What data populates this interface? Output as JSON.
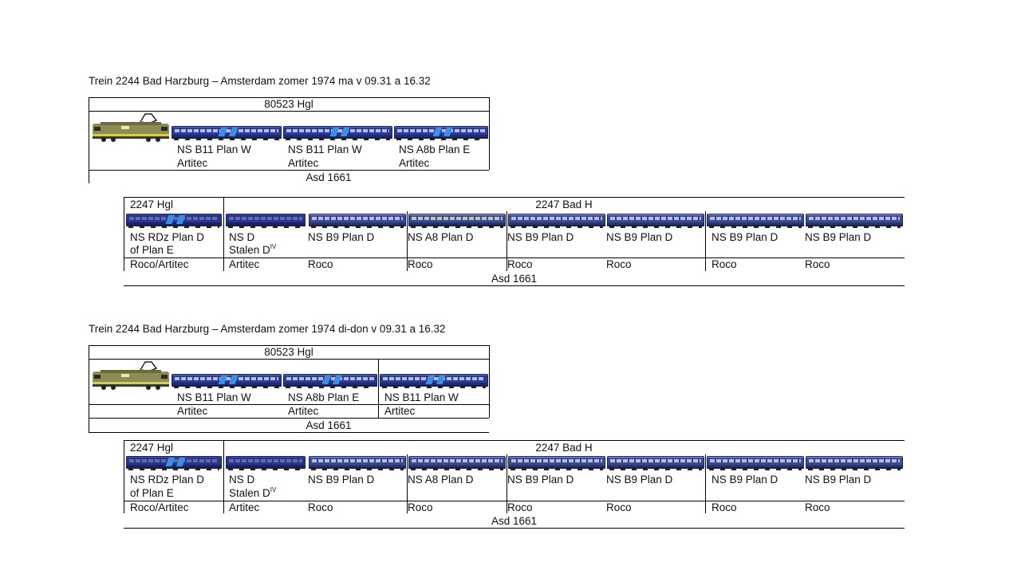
{
  "block1": {
    "title": "Trein 2244 Bad Harzburg – Amsterdam zomer 1974 ma v 09.31  a 16.32",
    "header": "80523 Hgl",
    "loco_icon": "electric-locomotive-1200",
    "coaches": [
      {
        "type": "NS B11 Plan W",
        "maker": "Artitec"
      },
      {
        "type": "NS B11 Plan W",
        "maker": "Artitec"
      },
      {
        "type": "NS A8b Plan E",
        "maker": "Artitec"
      }
    ],
    "footer": "Asd 1661"
  },
  "block2": {
    "header_left": "2247 Hgl",
    "header_right": "2247 Bad H",
    "coaches": [
      {
        "type": "NS RDz Plan D",
        "type2": "of Plan E",
        "maker": "Roco/Artitec"
      },
      {
        "type": "NS D",
        "type2": "Stalen D",
        "sup": "IV",
        "maker": "Artitec"
      },
      {
        "type": "NS B9 Plan D",
        "maker": "Roco"
      },
      {
        "type": "NS A8 Plan D",
        "maker": "Roco"
      },
      {
        "type": "NS B9 Plan D",
        "maker": "Roco"
      },
      {
        "type": "NS B9 Plan D",
        "maker": "Roco"
      },
      {
        "type": "NS B9 Plan D",
        "maker": "Roco"
      },
      {
        "type": "NS B9 Plan D",
        "maker": "Roco"
      }
    ],
    "footer": "Asd 1661"
  },
  "block3": {
    "title": "Trein 2244 Bad Harzburg – Amsterdam zomer 1974 di-don v 09.31  a 16.32",
    "header": "80523 Hgl",
    "loco_icon": "electric-locomotive-1200",
    "coaches": [
      {
        "type": "NS B11 Plan W",
        "maker": "Artitec"
      },
      {
        "type": "NS A8b Plan E",
        "maker": "Artitec"
      },
      {
        "type": "NS B11 Plan W",
        "maker": "Artitec"
      }
    ],
    "footer": "Asd 1661"
  },
  "block4": {
    "header_left": "2247 Hgl",
    "header_right": "2247 Bad H",
    "coaches": [
      {
        "type": "NS RDz Plan D",
        "type2": "of Plan E",
        "maker": "Roco/Artitec"
      },
      {
        "type": "NS D",
        "type2": "Stalen D",
        "sup": "IV",
        "maker": "Artitec"
      },
      {
        "type": "NS B9 Plan D",
        "maker": "Roco"
      },
      {
        "type": "NS A8 Plan D",
        "maker": "Roco"
      },
      {
        "type": "NS B9 Plan D",
        "maker": "Roco"
      },
      {
        "type": "NS B9 Plan D",
        "maker": "Roco"
      },
      {
        "type": "NS B9 Plan D",
        "maker": "Roco"
      },
      {
        "type": "NS B9 Plan D",
        "maker": "Roco"
      }
    ],
    "footer": "Asd 1661"
  }
}
